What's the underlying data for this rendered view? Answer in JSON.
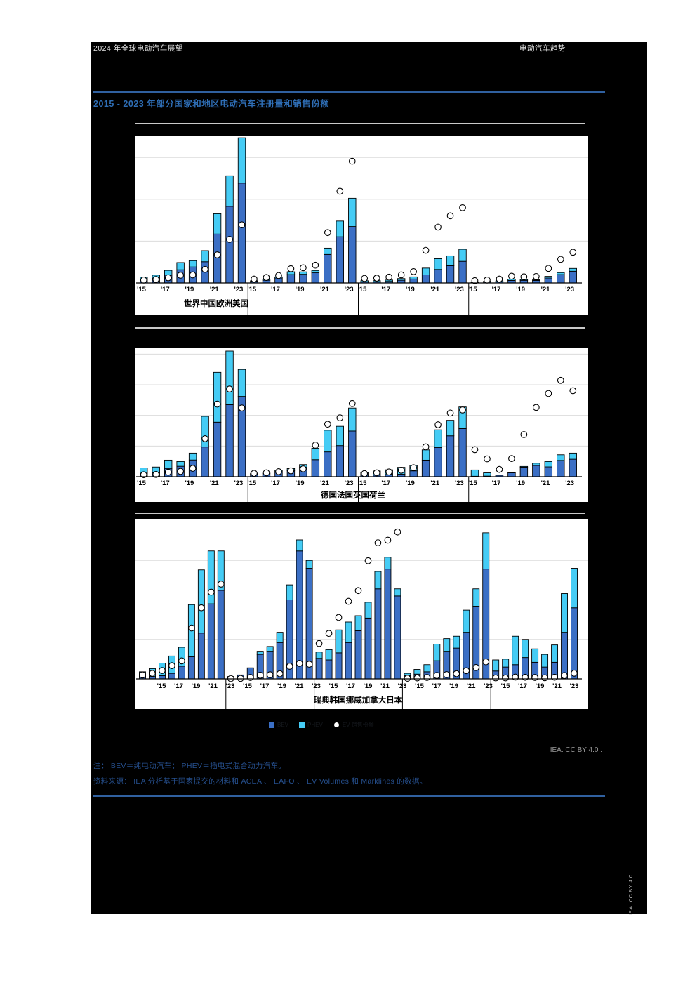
{
  "page": {
    "header_left": "2024 年全球电动汽车展望",
    "header_right": "电动汽车趋势",
    "title": "2015 - 2023 年部分国家和地区电动汽车注册量和销售份额",
    "credit": "IEA. CC BY 4.0 .",
    "side_credit": "IEA. CC BY 4.0 .",
    "note": "注： BEV＝纯电动汽车； PHEV＝插电式混合动力汽车。",
    "source": "资料来源： IEA 分析基于国家提交的材料和 ACEA 、 EAFO 、 EV Volumes 和 Marklines 的数据。",
    "legend": [
      {
        "label": "BEV",
        "type": "square",
        "color": "#3b6fc5"
      },
      {
        "label": "PHEV",
        "type": "square",
        "color": "#45ccf5"
      },
      {
        "label": "EV 销售份额",
        "type": "circle-marker",
        "color": "#ffffff"
      }
    ],
    "colors": {
      "bev": "#3b6fc5",
      "phev": "#45ccf5",
      "share_marker_fill": "#ffffff",
      "bar_outline": "#000000",
      "gridline": "#dcdcdc",
      "title_blue": "#2e6db4",
      "note_blue": "#26508f",
      "rule_blue": "#30609f"
    }
  },
  "chart_data": [
    {
      "type": "bar",
      "subtype": "stacked-bars-with-share-scatter",
      "row_label": "世界中国欧洲美国",
      "years": [
        2015,
        2016,
        2017,
        2018,
        2019,
        2020,
        2021,
        2022,
        2023
      ],
      "tick_labels": [
        "'15",
        "'17",
        "'19",
        "'21",
        "'23"
      ],
      "ymax": 13.9,
      "gridlines": [
        4,
        8,
        12
      ],
      "share_axis_max": 45,
      "series_names": [
        "BEV",
        "PHEV",
        "EV 销售份额"
      ],
      "panels": [
        {
          "name": "世界",
          "bev": [
            0.33,
            0.46,
            0.75,
            1.26,
            1.53,
            2.03,
            4.68,
            7.33,
            9.55
          ],
          "phev": [
            0.22,
            0.29,
            0.45,
            0.69,
            0.6,
            1.06,
            1.94,
            2.92,
            4.34
          ],
          "share_pct": [
            0.9,
            1.1,
            1.6,
            2.4,
            2.5,
            4.2,
            8.7,
            13.5,
            18.0
          ]
        },
        {
          "name": "中国",
          "bev": [
            0.15,
            0.26,
            0.47,
            0.8,
            0.83,
            0.97,
            2.73,
            4.42,
            5.4
          ],
          "phev": [
            0.06,
            0.08,
            0.11,
            0.27,
            0.23,
            0.22,
            0.6,
            1.5,
            2.7
          ],
          "share_pct": [
            1.2,
            1.7,
            2.3,
            4.4,
            4.7,
            5.5,
            15.6,
            28.4,
            37.7
          ]
        },
        {
          "name": "欧洲",
          "bev": [
            0.1,
            0.12,
            0.15,
            0.26,
            0.38,
            0.77,
            1.29,
            1.65,
            2.07
          ],
          "phev": [
            0.11,
            0.1,
            0.13,
            0.16,
            0.2,
            0.65,
            1.03,
            0.94,
            1.15
          ],
          "share_pct": [
            1.4,
            1.5,
            1.8,
            2.5,
            3.5,
            10.1,
            17.3,
            20.8,
            23.3
          ]
        },
        {
          "name": "美国",
          "bev": [
            0.07,
            0.09,
            0.1,
            0.24,
            0.25,
            0.24,
            0.47,
            0.8,
            1.12
          ],
          "phev": [
            0.04,
            0.07,
            0.09,
            0.12,
            0.08,
            0.06,
            0.16,
            0.19,
            0.27
          ],
          "share_pct": [
            0.7,
            0.9,
            1.2,
            2.1,
            1.9,
            2.0,
            4.5,
            7.3,
            9.5
          ]
        }
      ]
    },
    {
      "type": "bar",
      "subtype": "stacked-bars-with-share-scatter",
      "row_label": "德国法国英国荷兰",
      "years": [
        2015,
        2016,
        2017,
        2018,
        2019,
        2020,
        2021,
        2022,
        2023
      ],
      "tick_labels": [
        "'15",
        "'17",
        "'19",
        "'21",
        "'23"
      ],
      "ymax": 820,
      "gridlines": [
        200,
        400,
        600,
        800
      ],
      "share_axis_max": 45,
      "series_names": [
        "BEV",
        "PHEV",
        "EV 销售份额"
      ],
      "panels": [
        {
          "name": "德国",
          "bev": [
            23,
            25,
            54,
            68,
            109,
            194,
            356,
            470,
            524
          ],
          "phev": [
            34,
            38,
            54,
            31,
            45,
            200,
            325,
            362,
            176
          ],
          "share_pct": [
            0.7,
            0.8,
            1.6,
            1.9,
            3.0,
            13.6,
            26.0,
            31.4,
            24.6
          ]
        },
        {
          "name": "法国",
          "bev": [
            17,
            21,
            31,
            39,
            61,
            111,
            162,
            203,
            298
          ],
          "phev": [
            5,
            8,
            12,
            14,
            18,
            75,
            141,
            126,
            150
          ],
          "share_pct": [
            1.2,
            1.4,
            1.8,
            2.1,
            2.8,
            11.3,
            18.8,
            21.1,
            26.2
          ]
        },
        {
          "name": "英国",
          "bev": [
            10,
            10,
            14,
            16,
            38,
            108,
            191,
            267,
            314
          ],
          "phev": [
            18,
            27,
            31,
            45,
            35,
            67,
            115,
            101,
            141
          ],
          "share_pct": [
            1.1,
            1.4,
            1.7,
            2.3,
            3.2,
            10.7,
            18.6,
            22.8,
            23.9
          ]
        },
        {
          "name": "荷兰",
          "bev": [
            3,
            4,
            9,
            25,
            62,
            73,
            64,
            106,
            114
          ],
          "phev": [
            41,
            21,
            2,
            3,
            5,
            15,
            35,
            37,
            40
          ],
          "share_pct": [
            9.7,
            6.4,
            2.6,
            6.5,
            15.1,
            24.8,
            29.8,
            34.5,
            30.8
          ]
        }
      ]
    },
    {
      "type": "bar",
      "subtype": "stacked-bars-with-share-scatter",
      "row_label": "瑞典韩国挪威加拿大日本",
      "years": [
        2015,
        2016,
        2017,
        2018,
        2019,
        2020,
        2021,
        2022,
        2023
      ],
      "tick_labels": [
        "'15",
        "'17",
        "'19",
        "'21",
        "'23"
      ],
      "ymax": 200,
      "gridlines": [
        50,
        100,
        150
      ],
      "share_axis_max": 100,
      "series_names": [
        "BEV",
        "PHEV",
        "EV 销售份额"
      ],
      "panels": [
        {
          "name": "瑞典",
          "bev": [
            3,
            3,
            4,
            7,
            16,
            28,
            58,
            95,
            112
          ],
          "phev": [
            6,
            10,
            16,
            22,
            24,
            66,
            80,
            67,
            50
          ],
          "share_pct": [
            2.5,
            3.5,
            5.3,
            8.4,
            11.4,
            32.2,
            45.0,
            54.9,
            60.0
          ]
        },
        {
          "name": "韩国",
          "bev": [
            3,
            5,
            14,
            31,
            35,
            46,
            100,
            162,
            140
          ],
          "phev": [
            0,
            0,
            0,
            4,
            6,
            13,
            19,
            14,
            10
          ],
          "share_pct": [
            0.2,
            0.3,
            0.9,
            2.3,
            2.6,
            3.3,
            8.0,
            9.8,
            9.3
          ]
        },
        {
          "name": "挪威",
          "bev": [
            26,
            24,
            33,
            46,
            61,
            77,
            114,
            139,
            105
          ],
          "phev": [
            8,
            13,
            29,
            26,
            19,
            20,
            22,
            15,
            9
          ],
          "share_pct": [
            22.4,
            28.8,
            38.9,
            49.1,
            55.9,
            74.8,
            86.2,
            87.8,
            93.0
          ]
        },
        {
          "name": "加拿大",
          "bev": [
            4,
            6,
            9,
            23,
            35,
            39,
            59,
            92,
            139
          ],
          "phev": [
            3,
            6,
            9,
            21,
            16,
            15,
            28,
            22,
            46
          ],
          "share_pct": [
            0.4,
            0.6,
            0.9,
            2.2,
            2.7,
            3.3,
            5.2,
            7.2,
            10.8
          ]
        },
        {
          "name": "日本",
          "bev": [
            10,
            15,
            18,
            27,
            21,
            15,
            21,
            59,
            90
          ],
          "phev": [
            14,
            10,
            36,
            23,
            17,
            16,
            22,
            49,
            50
          ],
          "share_pct": [
            0.6,
            0.6,
            1.1,
            1.0,
            0.9,
            0.7,
            1.0,
            2.1,
            3.6
          ]
        }
      ]
    }
  ]
}
